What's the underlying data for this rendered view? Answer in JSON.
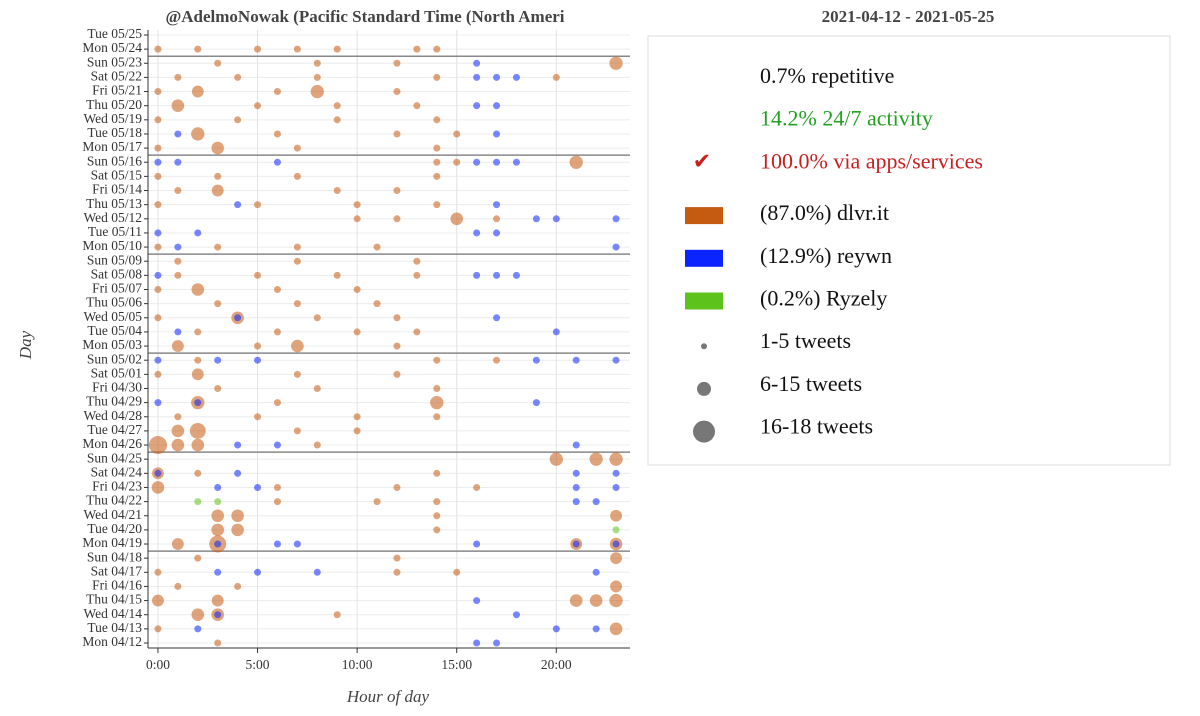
{
  "chart_data": {
    "type": "scatter",
    "title": "@AdelmoNowak (Pacific Standard Time (North Ameri",
    "period": "2021-04-12 - 2021-05-25",
    "x_label": "Hour of day",
    "y_label": "Day",
    "xlim": [
      -0.5,
      23.7
    ],
    "xticks": [
      {
        "value": 0,
        "label": "0:00"
      },
      {
        "value": 5,
        "label": "5:00"
      },
      {
        "value": 10,
        "label": "10:00"
      },
      {
        "value": 15,
        "label": "15:00"
      },
      {
        "value": 20,
        "label": "20:00"
      }
    ],
    "categories": [
      "Mon 04/12",
      "Tue 04/13",
      "Wed 04/14",
      "Thu 04/15",
      "Fri 04/16",
      "Sat 04/17",
      "Sun 04/18",
      "Mon 04/19",
      "Tue 04/20",
      "Wed 04/21",
      "Thu 04/22",
      "Fri 04/23",
      "Sat 04/24",
      "Sun 04/25",
      "Mon 04/26",
      "Tue 04/27",
      "Wed 04/28",
      "Thu 04/29",
      "Fri 04/30",
      "Sat 05/01",
      "Sun 05/02",
      "Mon 05/03",
      "Tue 05/04",
      "Wed 05/05",
      "Thu 05/06",
      "Fri 05/07",
      "Sat 05/08",
      "Sun 05/09",
      "Mon 05/10",
      "Tue 05/11",
      "Wed 05/12",
      "Thu 05/13",
      "Fri 05/14",
      "Sat 05/15",
      "Sun 05/16",
      "Mon 05/17",
      "Tue 05/18",
      "Wed 05/19",
      "Thu 05/20",
      "Fri 05/21",
      "Sat 05/22",
      "Sun 05/23",
      "Mon 05/24",
      "Tue 05/25"
    ],
    "marker_alpha": 0.55,
    "grid": true,
    "summary": [
      {
        "text": "0.7% repetitive",
        "color": "#111111"
      },
      {
        "text": "14.2% 24/7 activity",
        "color": "#22a022"
      },
      {
        "text": "100.0% via apps/services",
        "color": "#c81e1e",
        "mark": "✔"
      }
    ],
    "size_legend": [
      "1-5 tweets",
      "6-15 tweets",
      "16-18 tweets"
    ],
    "series": [
      {
        "name": "(87.0%) dlvr.it",
        "color": "#c55a11",
        "x": [
          0,
          2,
          5,
          7,
          9,
          13,
          14,
          3,
          8,
          12,
          23,
          1,
          4,
          8,
          14,
          20,
          0,
          2,
          6,
          8,
          12,
          1,
          5,
          9,
          13,
          0,
          4,
          9,
          14,
          2,
          6,
          12,
          15,
          0,
          3,
          7,
          14,
          14,
          15,
          21,
          0,
          3,
          7,
          14,
          1,
          3,
          9,
          12,
          0,
          5,
          10,
          14,
          10,
          12,
          15,
          17,
          0,
          3,
          7,
          11,
          1,
          7,
          13,
          1,
          5,
          9,
          13,
          0,
          2,
          6,
          10,
          3,
          7,
          11,
          0,
          4,
          8,
          12,
          2,
          6,
          10,
          13,
          1,
          5,
          7,
          12,
          2,
          14,
          17,
          0,
          2,
          7,
          12,
          3,
          8,
          14,
          2,
          6,
          14,
          1,
          5,
          10,
          14,
          1,
          2,
          7,
          10,
          0,
          1,
          2,
          8,
          20,
          22,
          23,
          0,
          2,
          14,
          0,
          6,
          12,
          16,
          6,
          11,
          14,
          3,
          4,
          14,
          23,
          3,
          4,
          14,
          1,
          3,
          21,
          23,
          2,
          12,
          23,
          0,
          12,
          15,
          1,
          4,
          23,
          0,
          3,
          21,
          22,
          23,
          2,
          3,
          9,
          0,
          23,
          3
        ],
        "values": [
          "Mon 05/24",
          "Mon 05/24",
          "Mon 05/24",
          "Mon 05/24",
          "Mon 05/24",
          "Mon 05/24",
          "Mon 05/24",
          "Sun 05/23",
          "Sun 05/23",
          "Sun 05/23",
          "Sun 05/23",
          "Sat 05/22",
          "Sat 05/22",
          "Sat 05/22",
          "Sat 05/22",
          "Sat 05/22",
          "Fri 05/21",
          "Fri 05/21",
          "Fri 05/21",
          "Fri 05/21",
          "Fri 05/21",
          "Thu 05/20",
          "Thu 05/20",
          "Thu 05/20",
          "Thu 05/20",
          "Wed 05/19",
          "Wed 05/19",
          "Wed 05/19",
          "Wed 05/19",
          "Tue 05/18",
          "Tue 05/18",
          "Tue 05/18",
          "Tue 05/18",
          "Mon 05/17",
          "Mon 05/17",
          "Mon 05/17",
          "Mon 05/17",
          "Sun 05/16",
          "Sun 05/16",
          "Sun 05/16",
          "Sat 05/15",
          "Sat 05/15",
          "Sat 05/15",
          "Sat 05/15",
          "Fri 05/14",
          "Fri 05/14",
          "Fri 05/14",
          "Fri 05/14",
          "Thu 05/13",
          "Thu 05/13",
          "Thu 05/13",
          "Thu 05/13",
          "Wed 05/12",
          "Wed 05/12",
          "Wed 05/12",
          "Wed 05/12",
          "Mon 05/10",
          "Mon 05/10",
          "Mon 05/10",
          "Mon 05/10",
          "Sun 05/09",
          "Sun 05/09",
          "Sun 05/09",
          "Sat 05/08",
          "Sat 05/08",
          "Sat 05/08",
          "Sat 05/08",
          "Fri 05/07",
          "Fri 05/07",
          "Fri 05/07",
          "Fri 05/07",
          "Thu 05/06",
          "Thu 05/06",
          "Thu 05/06",
          "Wed 05/05",
          "Wed 05/05",
          "Wed 05/05",
          "Wed 05/05",
          "Tue 05/04",
          "Tue 05/04",
          "Tue 05/04",
          "Tue 05/04",
          "Mon 05/03",
          "Mon 05/03",
          "Mon 05/03",
          "Mon 05/03",
          "Sun 05/02",
          "Sun 05/02",
          "Sun 05/02",
          "Sat 05/01",
          "Sat 05/01",
          "Sat 05/01",
          "Sat 05/01",
          "Fri 04/30",
          "Fri 04/30",
          "Fri 04/30",
          "Thu 04/29",
          "Thu 04/29",
          "Thu 04/29",
          "Wed 04/28",
          "Wed 04/28",
          "Wed 04/28",
          "Wed 04/28",
          "Tue 04/27",
          "Tue 04/27",
          "Tue 04/27",
          "Tue 04/27",
          "Mon 04/26",
          "Mon 04/26",
          "Mon 04/26",
          "Mon 04/26",
          "Sun 04/25",
          "Sun 04/25",
          "Sun 04/25",
          "Sat 04/24",
          "Sat 04/24",
          "Sat 04/24",
          "Fri 04/23",
          "Fri 04/23",
          "Fri 04/23",
          "Fri 04/23",
          "Thu 04/22",
          "Thu 04/22",
          "Thu 04/22",
          "Wed 04/21",
          "Wed 04/21",
          "Wed 04/21",
          "Wed 04/21",
          "Tue 04/20",
          "Tue 04/20",
          "Tue 04/20",
          "Mon 04/19",
          "Mon 04/19",
          "Mon 04/19",
          "Mon 04/19",
          "Sun 04/18",
          "Sun 04/18",
          "Sun 04/18",
          "Sat 04/17",
          "Sat 04/17",
          "Sat 04/17",
          "Fri 04/16",
          "Fri 04/16",
          "Fri 04/16",
          "Thu 04/15",
          "Thu 04/15",
          "Thu 04/15",
          "Thu 04/15",
          "Thu 04/15",
          "Wed 04/14",
          "Wed 04/14",
          "Wed 04/14",
          "Tue 04/13",
          "Tue 04/13",
          "Mon 04/12"
        ],
        "sizes": [
          3,
          3,
          3,
          3,
          3,
          3,
          3,
          3,
          3,
          3,
          10,
          3,
          3,
          3,
          3,
          3,
          3,
          8,
          3,
          10,
          3,
          9,
          3,
          3,
          3,
          3,
          3,
          3,
          3,
          10,
          3,
          3,
          3,
          3,
          9,
          3,
          3,
          3,
          3,
          10,
          3,
          3,
          3,
          3,
          3,
          8,
          3,
          3,
          3,
          3,
          3,
          3,
          3,
          3,
          9,
          3,
          3,
          3,
          3,
          3,
          3,
          3,
          3,
          3,
          3,
          3,
          3,
          3,
          9,
          3,
          3,
          3,
          3,
          3,
          3,
          9,
          3,
          3,
          3,
          3,
          3,
          3,
          8,
          3,
          9,
          3,
          3,
          3,
          3,
          3,
          8,
          3,
          3,
          3,
          3,
          3,
          10,
          3,
          10,
          3,
          3,
          3,
          3,
          9,
          14,
          3,
          3,
          18,
          9,
          9,
          3,
          10,
          10,
          10,
          8,
          3,
          3,
          9,
          3,
          3,
          3,
          3,
          3,
          3,
          9,
          9,
          3,
          8,
          9,
          9,
          3,
          8,
          16,
          8,
          9,
          3,
          3,
          8,
          3,
          3,
          3,
          3,
          3,
          8,
          8,
          8,
          9,
          9,
          10,
          9,
          9,
          3,
          3,
          9,
          3
        ]
      },
      {
        "name": "(12.9%) reywn",
        "color": "#0a24ff",
        "x": [
          16,
          16,
          17,
          18,
          16,
          17,
          1,
          17,
          0,
          1,
          6,
          16,
          17,
          18,
          4,
          17,
          19,
          20,
          23,
          0,
          2,
          16,
          17,
          1,
          23,
          0,
          16,
          17,
          18,
          4,
          17,
          1,
          20,
          0,
          3,
          5,
          19,
          21,
          23,
          0,
          2,
          19,
          4,
          6,
          21,
          0,
          4,
          21,
          23,
          3,
          5,
          21,
          23,
          21,
          22,
          3,
          6,
          7,
          16,
          21,
          23,
          3,
          5,
          8,
          22,
          16,
          3,
          18,
          2,
          20,
          22,
          16,
          17
        ],
        "values": [
          "Sun 05/23",
          "Sat 05/22",
          "Sat 05/22",
          "Sat 05/22",
          "Thu 05/20",
          "Thu 05/20",
          "Tue 05/18",
          "Tue 05/18",
          "Sun 05/16",
          "Sun 05/16",
          "Sun 05/16",
          "Sun 05/16",
          "Sun 05/16",
          "Sun 05/16",
          "Thu 05/13",
          "Thu 05/13",
          "Wed 05/12",
          "Wed 05/12",
          "Wed 05/12",
          "Tue 05/11",
          "Tue 05/11",
          "Tue 05/11",
          "Tue 05/11",
          "Mon 05/10",
          "Mon 05/10",
          "Sat 05/08",
          "Sat 05/08",
          "Sat 05/08",
          "Sat 05/08",
          "Wed 05/05",
          "Wed 05/05",
          "Tue 05/04",
          "Tue 05/04",
          "Sun 05/02",
          "Sun 05/02",
          "Sun 05/02",
          "Sun 05/02",
          "Sun 05/02",
          "Sun 05/02",
          "Thu 04/29",
          "Thu 04/29",
          "Thu 04/29",
          "Mon 04/26",
          "Mon 04/26",
          "Mon 04/26",
          "Sat 04/24",
          "Sat 04/24",
          "Sat 04/24",
          "Sat 04/24",
          "Fri 04/23",
          "Fri 04/23",
          "Fri 04/23",
          "Fri 04/23",
          "Thu 04/22",
          "Thu 04/22",
          "Mon 04/19",
          "Mon 04/19",
          "Mon 04/19",
          "Mon 04/19",
          "Mon 04/19",
          "Mon 04/19",
          "Sat 04/17",
          "Sat 04/17",
          "Sat 04/17",
          "Sat 04/17",
          "Thu 04/15",
          "Wed 04/14",
          "Wed 04/14",
          "Tue 04/13",
          "Tue 04/13",
          "Tue 04/13",
          "Mon 04/12",
          "Mon 04/12"
        ],
        "sizes": [
          3,
          3,
          3,
          3,
          3,
          3,
          3,
          3,
          3,
          3,
          3,
          3,
          3,
          3,
          3,
          3,
          3,
          3,
          3,
          3,
          3,
          3,
          3,
          3,
          3,
          3,
          3,
          3,
          3,
          3,
          3,
          3,
          3,
          3,
          3,
          3,
          3,
          3,
          3,
          3,
          3,
          3,
          3,
          3,
          3,
          3,
          3,
          3,
          3,
          3,
          3,
          3,
          3,
          3,
          3,
          3,
          3,
          3,
          3,
          3,
          3,
          3,
          3,
          3,
          3,
          3,
          3,
          3,
          3,
          3,
          3,
          3,
          3
        ]
      },
      {
        "name": "(0.2%) Ryzely",
        "color": "#5ec21c",
        "x": [
          2,
          3,
          23
        ],
        "values": [
          "Thu 04/22",
          "Thu 04/22",
          "Tue 04/20"
        ],
        "sizes": [
          3,
          3,
          3
        ]
      }
    ]
  }
}
